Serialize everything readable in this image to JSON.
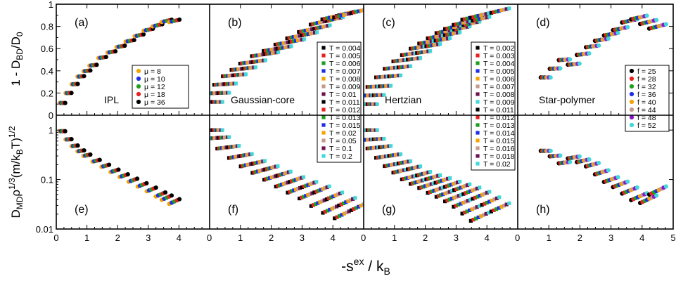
{
  "chart_data": {
    "type": "scatter",
    "xlabel": "-s",
    "xlabel_sup": "ex",
    "xlabel_mid": " / k",
    "xlabel_sub": "B",
    "top_ylabel": {
      "pre": "1 - D",
      "sub": "BD",
      "mid": "/D",
      "sub2": "0"
    },
    "bottom_ylabel": {
      "pre": "D",
      "sub": "MD",
      "mid": "ρ",
      "sup": "1/3",
      "mid2": "(m/k",
      "sub2": "B",
      "end": "T)",
      "sup2": "1/2"
    },
    "top_ylim": [
      0,
      1
    ],
    "bottom_ylim": [
      0.01,
      2
    ],
    "bottom_yscale": "log",
    "top_yticks": [
      "0",
      "0.2",
      "0.4",
      "0.6",
      "0.8",
      "1"
    ],
    "bottom_yticks": [
      "0.01",
      "0.1",
      "1"
    ],
    "columns": [
      {
        "xlim": [
          0,
          5
        ],
        "xticks": [
          "0",
          "1",
          "2",
          "3",
          "4"
        ],
        "model": "IPL",
        "top_label": "(a)",
        "bottom_label": "(e)",
        "legend": {
          "marker": "circle",
          "row": "top",
          "entries": [
            {
              "label": "μ = 8",
              "color": "#f5a300"
            },
            {
              "label": "μ = 10",
              "color": "#1f2de8"
            },
            {
              "label": "μ = 12",
              "color": "#1e9e1e"
            },
            {
              "label": "μ = 18",
              "color": "#e82020"
            },
            {
              "label": "μ = 36",
              "color": "#000000"
            }
          ]
        },
        "top_points": [
          [
            0.2,
            0.11
          ],
          [
            0.4,
            0.2
          ],
          [
            0.6,
            0.28
          ],
          [
            0.8,
            0.35
          ],
          [
            1.0,
            0.4
          ],
          [
            1.2,
            0.45
          ],
          [
            1.5,
            0.52
          ],
          [
            1.8,
            0.57
          ],
          [
            2.1,
            0.62
          ],
          [
            2.4,
            0.67
          ],
          [
            2.7,
            0.72
          ],
          [
            3.0,
            0.77
          ],
          [
            3.3,
            0.81
          ],
          [
            3.6,
            0.85
          ],
          [
            3.85,
            0.85
          ]
        ],
        "bottom_points": [
          [
            0.2,
            0.95
          ],
          [
            0.4,
            0.65
          ],
          [
            0.6,
            0.48
          ],
          [
            0.8,
            0.38
          ],
          [
            1.0,
            0.31
          ],
          [
            1.3,
            0.24
          ],
          [
            1.6,
            0.19
          ],
          [
            1.9,
            0.15
          ],
          [
            2.2,
            0.12
          ],
          [
            2.5,
            0.097
          ],
          [
            2.8,
            0.078
          ],
          [
            3.1,
            0.063
          ],
          [
            3.4,
            0.05
          ],
          [
            3.6,
            0.043
          ],
          [
            3.85,
            0.036
          ]
        ],
        "bottom_trend": [
          [
            0.2,
            0.95
          ],
          [
            3.85,
            0.036
          ]
        ]
      },
      {
        "xlim": [
          0,
          5
        ],
        "xticks": [
          "0",
          "1",
          "2",
          "3",
          "4"
        ],
        "model": "Gaussian-core",
        "top_label": "(b)",
        "bottom_label": "(f)",
        "legend": {
          "marker": "square",
          "row": "top",
          "entries": [
            {
              "label": "T = 0.004",
              "color": "#000000"
            },
            {
              "label": "T = 0.005",
              "color": "#e82020"
            },
            {
              "label": "T = 0.006",
              "color": "#1e9e1e"
            },
            {
              "label": "T = 0.007",
              "color": "#1f2de8"
            },
            {
              "label": "T = 0.008",
              "color": "#f5a300"
            },
            {
              "label": "T = 0.009",
              "color": "#c49a8a"
            },
            {
              "label": "T = 0.01",
              "color": "#6b1450"
            },
            {
              "label": "T = 0.011",
              "color": "#000000"
            },
            {
              "label": "T = 0.012",
              "color": "#e82020"
            },
            {
              "label": "T = 0.013",
              "color": "#1e9e1e"
            },
            {
              "label": "T = 0.015",
              "color": "#1f2de8"
            },
            {
              "label": "T = 0.02",
              "color": "#f5a300"
            },
            {
              "label": "T = 0.05",
              "color": "#c49a8a"
            },
            {
              "label": "T = 0.1",
              "color": "#6b1450"
            },
            {
              "label": "T = 0.2",
              "color": "#40d8d8"
            }
          ]
        },
        "top_points": [
          [
            0.1,
            0.12
          ],
          [
            0.3,
            0.2
          ],
          [
            0.5,
            0.28
          ],
          [
            0.8,
            0.36
          ],
          [
            1.1,
            0.42
          ],
          [
            1.4,
            0.48
          ],
          [
            1.8,
            0.55
          ],
          [
            2.2,
            0.6
          ],
          [
            2.6,
            0.66
          ],
          [
            3.0,
            0.72
          ],
          [
            3.4,
            0.78
          ],
          [
            3.8,
            0.85
          ],
          [
            4.2,
            0.9
          ],
          [
            4.6,
            0.92
          ]
        ],
        "bottom_points": [
          [
            0.1,
            1.0
          ],
          [
            0.3,
            0.7
          ],
          [
            0.6,
            0.45
          ],
          [
            1.0,
            0.3
          ],
          [
            1.4,
            0.21
          ],
          [
            1.8,
            0.16
          ],
          [
            2.2,
            0.12
          ],
          [
            2.6,
            0.09
          ],
          [
            3.0,
            0.07
          ],
          [
            3.4,
            0.055
          ],
          [
            3.8,
            0.04
          ],
          [
            4.2,
            0.03
          ],
          [
            4.6,
            0.024
          ]
        ],
        "bottom_trend": [
          [
            0.1,
            1.0
          ],
          [
            4.6,
            0.024
          ]
        ]
      },
      {
        "xlim": [
          0,
          5
        ],
        "xticks": [
          "0",
          "1",
          "2",
          "3",
          "4"
        ],
        "model": "Hertzian",
        "top_label": "(c)",
        "bottom_label": "(g)",
        "legend": {
          "marker": "square",
          "row": "top",
          "entries": [
            {
              "label": "T = 0.002",
              "color": "#000000"
            },
            {
              "label": "T = 0.003",
              "color": "#e82020"
            },
            {
              "label": "T = 0.004",
              "color": "#1e9e1e"
            },
            {
              "label": "T = 0.005",
              "color": "#1f2de8"
            },
            {
              "label": "T = 0.006",
              "color": "#f5a300"
            },
            {
              "label": "T = 0.007",
              "color": "#c49a8a"
            },
            {
              "label": "T = 0.008",
              "color": "#6b1450"
            },
            {
              "label": "T = 0.009",
              "color": "#40d8d8"
            },
            {
              "label": "T = 0.011",
              "color": "#000000"
            },
            {
              "label": "T = 0.012",
              "color": "#e82020"
            },
            {
              "label": "T = 0.013",
              "color": "#1e9e1e"
            },
            {
              "label": "T = 0.014",
              "color": "#1f2de8"
            },
            {
              "label": "T = 0.015",
              "color": "#f5a300"
            },
            {
              "label": "T = 0.016",
              "color": "#c49a8a"
            },
            {
              "label": "T = 0.018",
              "color": "#6b1450"
            },
            {
              "label": "T = 0.02",
              "color": "#40d8d8"
            }
          ]
        },
        "top_points": [
          [
            0.1,
            0.1
          ],
          [
            0.3,
            0.18
          ],
          [
            0.5,
            0.26
          ],
          [
            0.8,
            0.35
          ],
          [
            1.1,
            0.43
          ],
          [
            1.4,
            0.5
          ],
          [
            1.7,
            0.56
          ],
          [
            2.0,
            0.62
          ],
          [
            2.3,
            0.67
          ],
          [
            2.6,
            0.72
          ],
          [
            2.9,
            0.77
          ],
          [
            3.2,
            0.81
          ],
          [
            3.5,
            0.85
          ],
          [
            3.8,
            0.9
          ],
          [
            4.1,
            0.92
          ]
        ],
        "bottom_points": [
          [
            0.1,
            1.0
          ],
          [
            0.3,
            0.65
          ],
          [
            0.5,
            0.45
          ],
          [
            0.8,
            0.3
          ],
          [
            1.1,
            0.21
          ],
          [
            1.4,
            0.16
          ],
          [
            1.7,
            0.12
          ],
          [
            2.0,
            0.1
          ],
          [
            2.3,
            0.085
          ],
          [
            2.6,
            0.07
          ],
          [
            2.9,
            0.06
          ],
          [
            3.2,
            0.05
          ],
          [
            3.5,
            0.04
          ],
          [
            3.8,
            0.03
          ],
          [
            4.1,
            0.022
          ]
        ],
        "bottom_trend": [
          [
            0.1,
            1.0
          ],
          [
            4.1,
            0.022
          ]
        ]
      },
      {
        "xlim": [
          0,
          5
        ],
        "xticks": [
          "0",
          "1",
          "2",
          "3",
          "4",
          "5"
        ],
        "model": "Star-polymer",
        "top_label": "(d)",
        "bottom_label": "(h)",
        "legend": {
          "marker": "circle",
          "row": "bottom",
          "entries": [
            {
              "label": "f = 25",
              "color": "#000000"
            },
            {
              "label": "f = 28",
              "color": "#e82020"
            },
            {
              "label": "f = 32",
              "color": "#1e9e1e"
            },
            {
              "label": "f = 36",
              "color": "#1f2de8"
            },
            {
              "label": "f = 40",
              "color": "#f5a300"
            },
            {
              "label": "f = 44",
              "color": "#c49a8a"
            },
            {
              "label": "f = 48",
              "color": "#8a14c8"
            },
            {
              "label": "f = 52",
              "color": "#40d8d8"
            }
          ]
        },
        "top_points": [
          [
            0.9,
            0.34
          ],
          [
            1.2,
            0.42
          ],
          [
            1.5,
            0.5
          ],
          [
            1.8,
            0.46
          ],
          [
            2.1,
            0.55
          ],
          [
            2.4,
            0.62
          ],
          [
            2.7,
            0.68
          ],
          [
            3.0,
            0.73
          ],
          [
            3.3,
            0.78
          ],
          [
            3.6,
            0.85
          ],
          [
            3.9,
            0.88
          ],
          [
            4.2,
            0.84
          ],
          [
            4.5,
            0.8
          ]
        ],
        "bottom_points": [
          [
            0.9,
            0.38
          ],
          [
            1.2,
            0.3
          ],
          [
            1.5,
            0.22
          ],
          [
            1.8,
            0.28
          ],
          [
            2.1,
            0.24
          ],
          [
            2.4,
            0.2
          ],
          [
            2.7,
            0.14
          ],
          [
            3.0,
            0.1
          ],
          [
            3.3,
            0.08
          ],
          [
            3.6,
            0.06
          ],
          [
            3.9,
            0.045
          ],
          [
            4.2,
            0.04
          ],
          [
            4.5,
            0.06
          ]
        ],
        "bottom_trend": [
          [
            0.9,
            0.38
          ],
          [
            3.9,
            0.035
          ]
        ]
      }
    ]
  }
}
